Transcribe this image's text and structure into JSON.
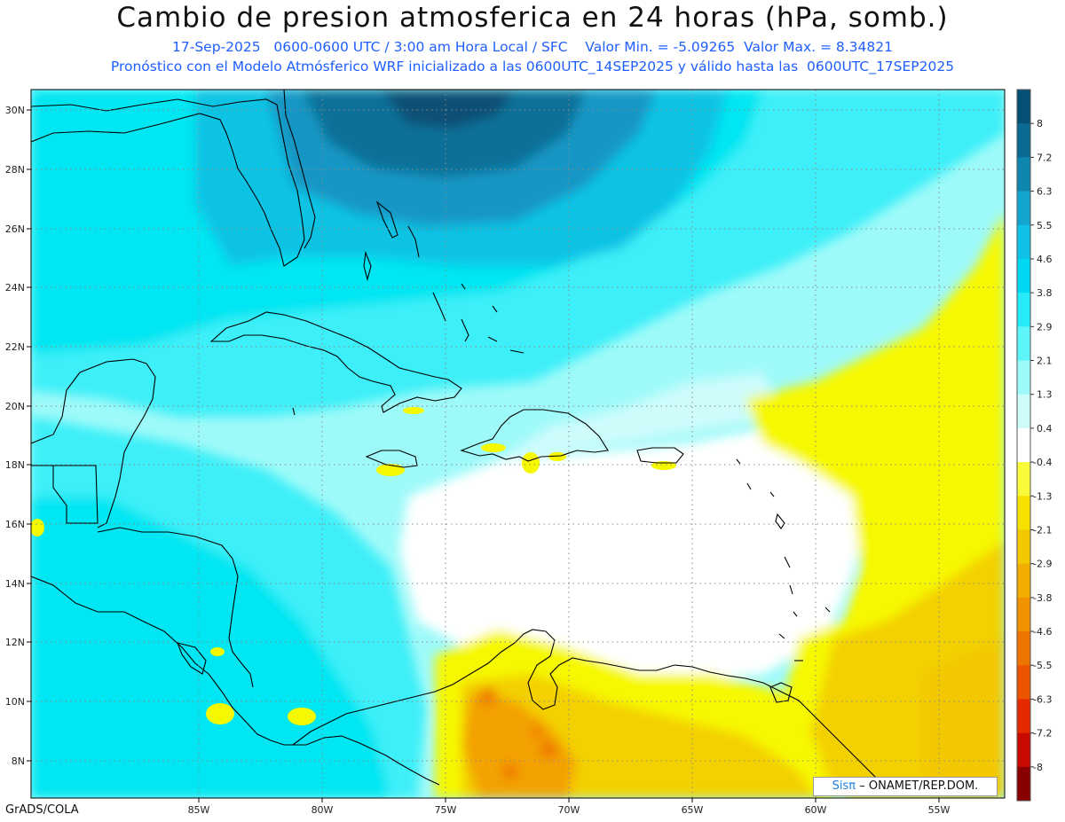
{
  "header": {
    "title": "Cambio de presion atmosferica en 24 horas (hPa, somb.)",
    "subtitle_1": "17-Sep-2025   0600-0600 UTC / 3:00 am Hora Local / SFC    Valor Min. = -5.09265  Valor Max. = 8.34821",
    "subtitle_2": "Pronóstico con el Modelo Atmósferico WRF inicializado a las 0600UTC_14SEP2025 y válido hasta las  0600UTC_17SEP2025"
  },
  "map": {
    "lat_labels": [
      "30N",
      "28N",
      "26N",
      "24N",
      "22N",
      "20N",
      "18N",
      "16N",
      "14N",
      "12N",
      "10N",
      "8N"
    ],
    "lon_labels": [
      "85W",
      "80W",
      "75W",
      "70W",
      "65W",
      "60W",
      "55W"
    ],
    "colors": {
      "dark_blue": "#0e6f98",
      "blue": "#1596c4",
      "mid_blue": "#11c3e4",
      "light_blue": "#00e6f2",
      "cyan": "#3eeff8",
      "pale_cyan": "#9efaf9",
      "very_pale": "#cdfcfb",
      "white": "#ffffff",
      "yellow": "#f6f800",
      "gold": "#f3d000",
      "orange": "#f3a200",
      "dark_orange": "#ef7800",
      "red_orange": "#ec4a00"
    }
  },
  "colorbar": {
    "labels": [
      "8",
      "7.2",
      "6.3",
      "5.5",
      "4.6",
      "3.8",
      "2.9",
      "2.1",
      "1.3",
      "0.4",
      "-0.4",
      "-1.3",
      "-2.1",
      "-2.9",
      "-3.8",
      "-4.6",
      "-5.5",
      "-6.3",
      "-7.2",
      "-8"
    ],
    "colors": [
      "#075075",
      "#0b6a94",
      "#0e86b0",
      "#12a6cf",
      "#0fc1e6",
      "#00d8f3",
      "#27eaf8",
      "#5ef5f9",
      "#9efaf9",
      "#cdfcfb",
      "#ffffff",
      "#f9fb3a",
      "#f6e000",
      "#f3c800",
      "#f2ae00",
      "#f09200",
      "#ee7400",
      "#ec5400",
      "#e62a00",
      "#c80a00",
      "#8a0000"
    ]
  },
  "footer": {
    "left": "GrADS/COLA",
    "credit_brand": "Sisπ",
    "credit_rest": "– ONAMET/REP.DOM."
  }
}
